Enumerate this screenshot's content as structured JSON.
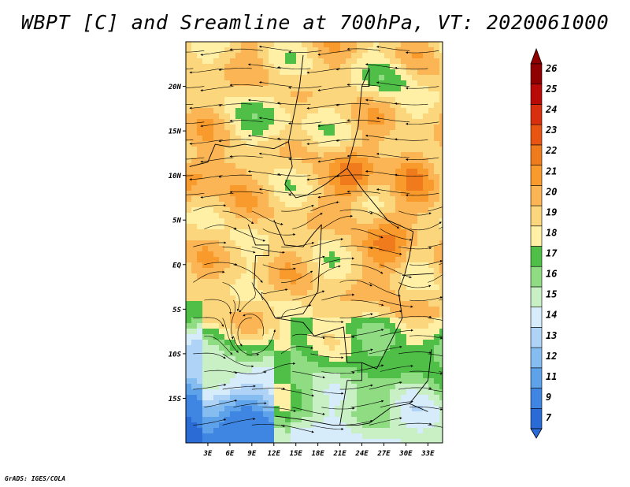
{
  "chart_data": {
    "type": "heatmap",
    "title": "WBPT [C] and Sreamline at 700hPa, VT: 2020061000",
    "variable": "WBPT [C]",
    "overlay": "Sreamline",
    "level": "700hPa",
    "valid_time": "2020061000",
    "xlim": [
      0,
      35
    ],
    "ylim": [
      -20,
      25
    ],
    "x_ticks": [
      {
        "value": 3,
        "label": "3E"
      },
      {
        "value": 6,
        "label": "6E"
      },
      {
        "value": 9,
        "label": "9E"
      },
      {
        "value": 12,
        "label": "12E"
      },
      {
        "value": 15,
        "label": "15E"
      },
      {
        "value": 18,
        "label": "18E"
      },
      {
        "value": 21,
        "label": "21E"
      },
      {
        "value": 24,
        "label": "24E"
      },
      {
        "value": 27,
        "label": "27E"
      },
      {
        "value": 30,
        "label": "30E"
      },
      {
        "value": 33,
        "label": "33E"
      }
    ],
    "y_ticks": [
      {
        "value": 20,
        "label": "20N"
      },
      {
        "value": 15,
        "label": "15N"
      },
      {
        "value": 10,
        "label": "10N"
      },
      {
        "value": 5,
        "label": "5N"
      },
      {
        "value": 0,
        "label": "EQ"
      },
      {
        "value": -5,
        "label": "5S"
      },
      {
        "value": -10,
        "label": "10S"
      },
      {
        "value": -15,
        "label": "15S"
      }
    ],
    "colorbar": {
      "levels": [
        "7",
        "9",
        "11",
        "12",
        "13",
        "14",
        "15",
        "16",
        "17",
        "18",
        "19",
        "20",
        "21",
        "22",
        "23",
        "24",
        "25",
        "26"
      ],
      "colors": [
        "#2a6bd6",
        "#3f86e2",
        "#5ea2ea",
        "#86bdf1",
        "#aed3f6",
        "#d6ecfb",
        "#c9f0c5",
        "#8fdc82",
        "#4fbf48",
        "#fff0a6",
        "#fcd67c",
        "#fbb554",
        "#f99a2d",
        "#f07b1c",
        "#e85513",
        "#d8300e",
        "#b80a06",
        "#900000"
      ]
    }
  },
  "footer": "GrADS: IGES/COLA"
}
